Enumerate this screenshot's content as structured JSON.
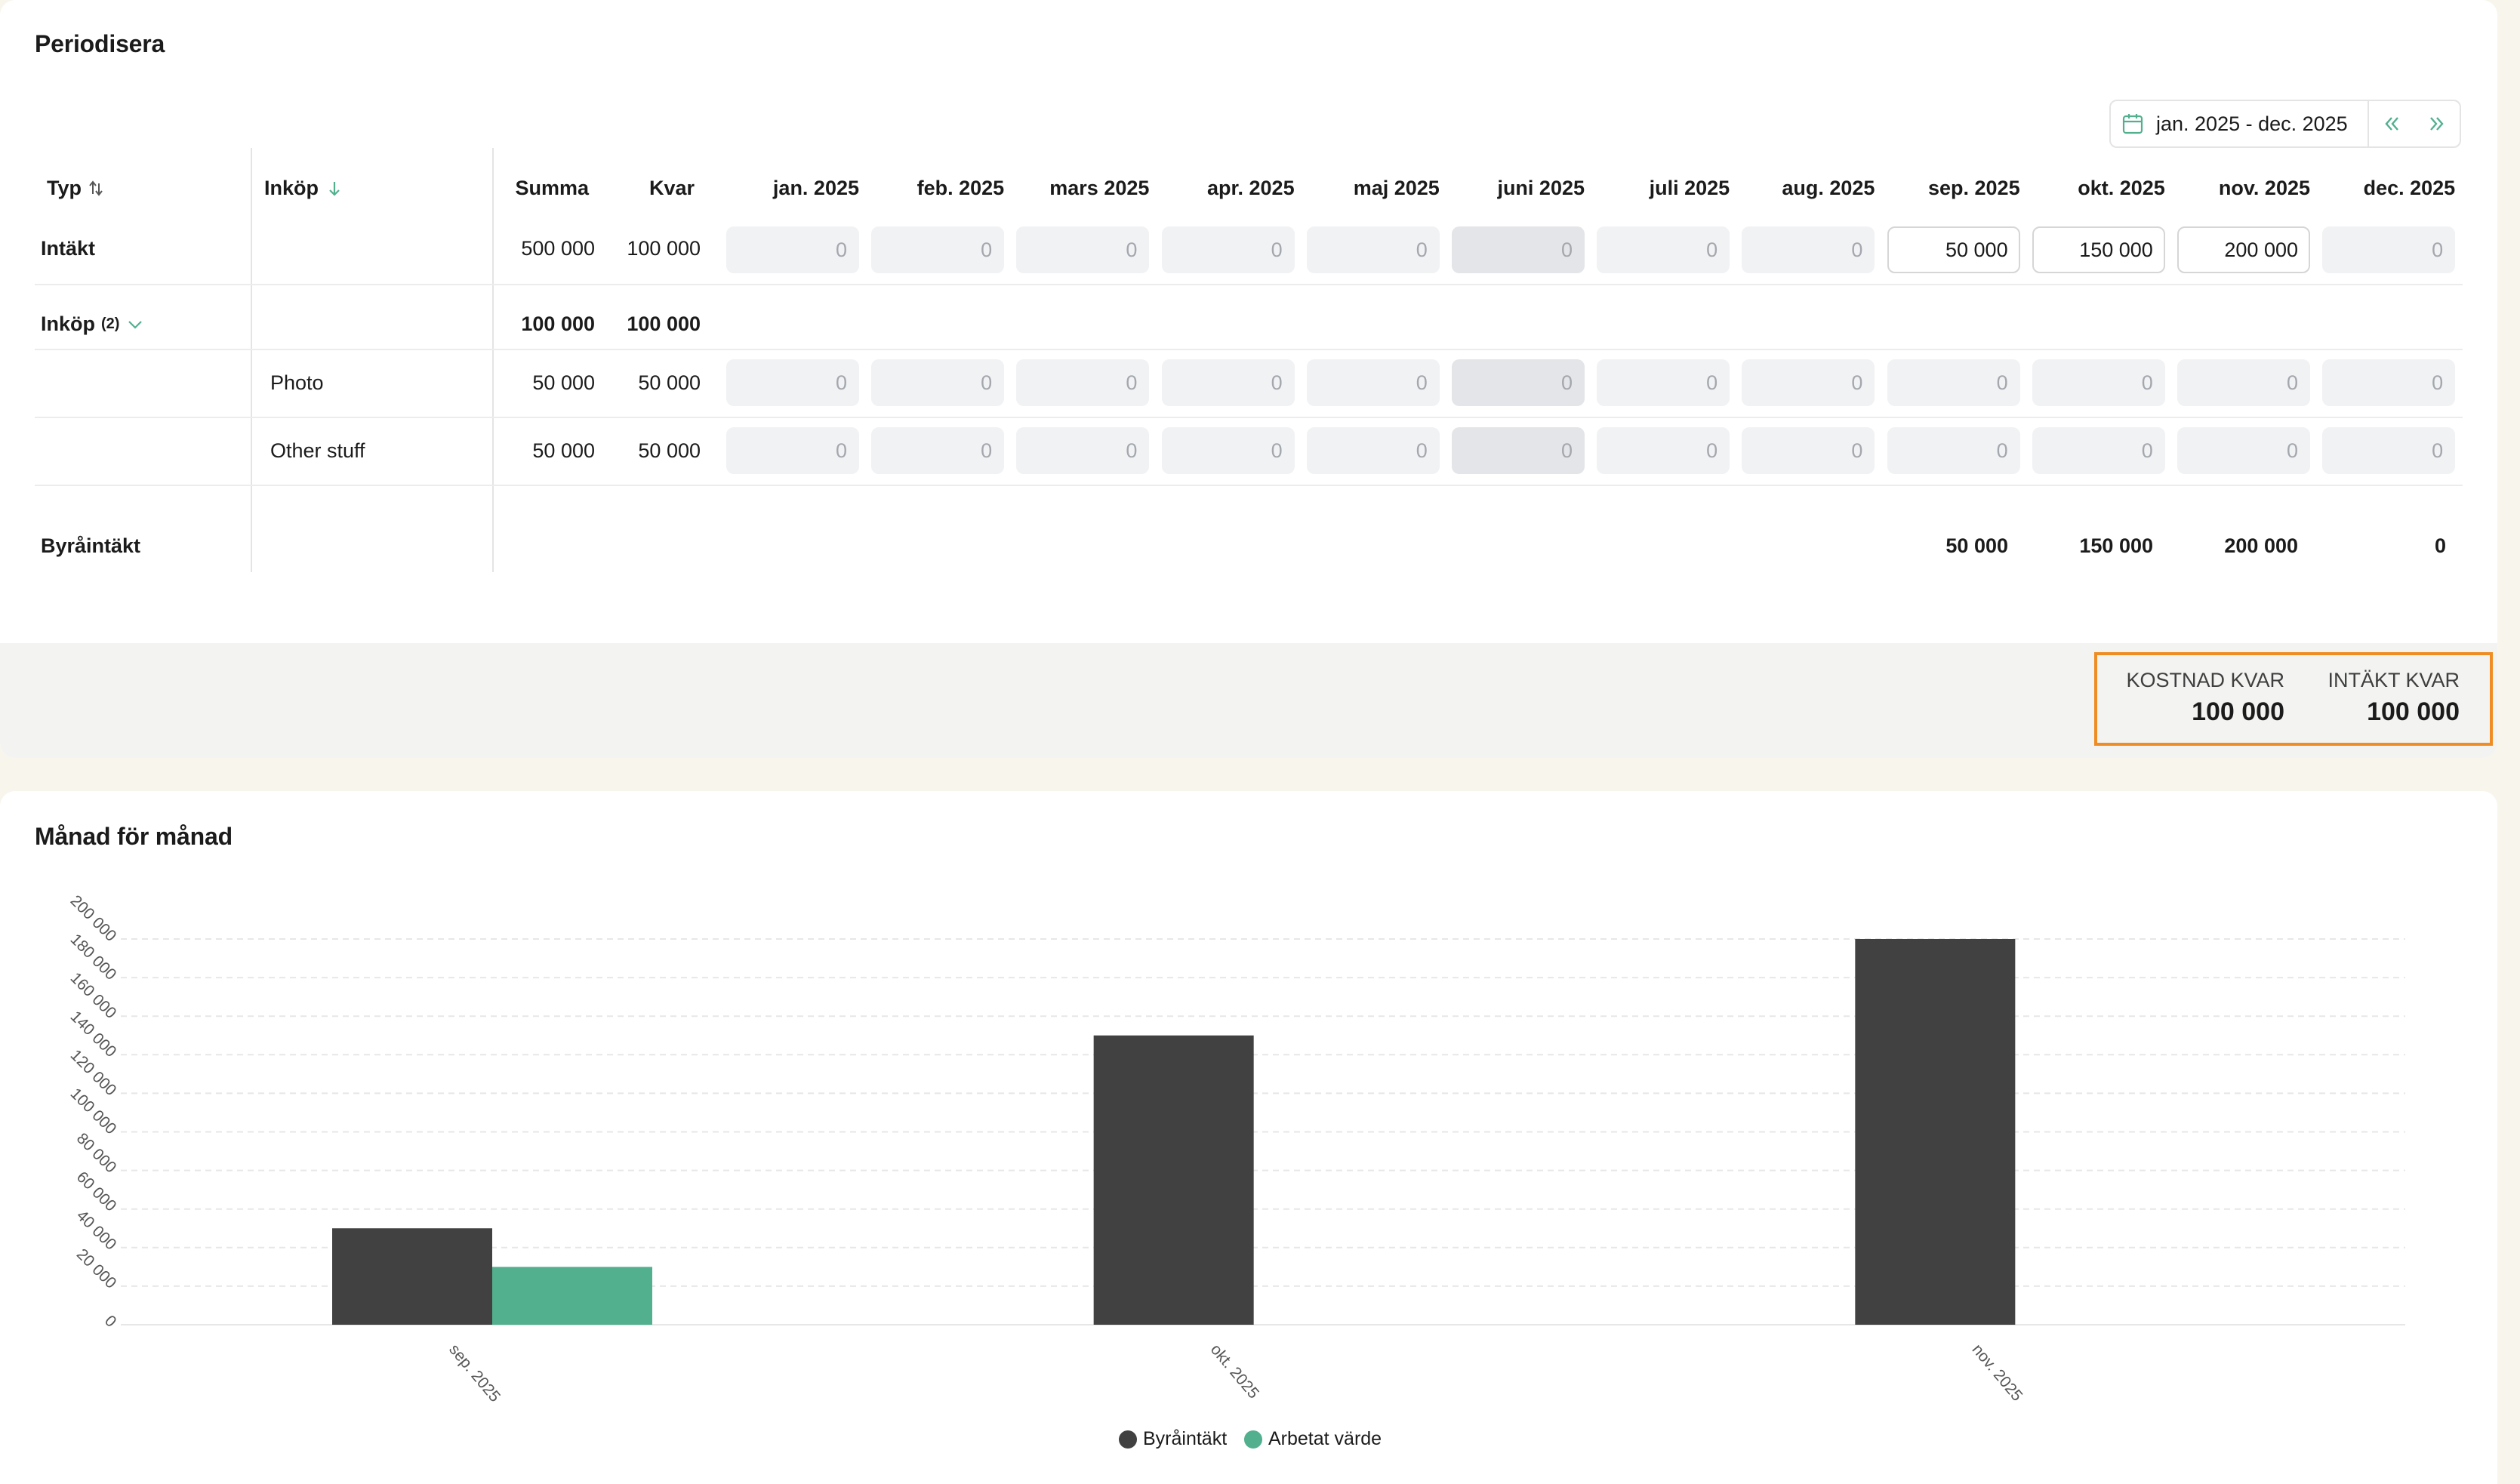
{
  "periodisera": {
    "title": "Periodisera",
    "date_range": "jan. 2025 - dec. 2025",
    "columns": {
      "typ": "Typ",
      "inkop": "Inköp",
      "summa": "Summa",
      "kvar": "Kvar",
      "months": [
        "jan. 2025",
        "feb. 2025",
        "mars 2025",
        "apr. 2025",
        "maj 2025",
        "juni 2025",
        "juli 2025",
        "aug. 2025",
        "sep. 2025",
        "okt. 2025",
        "nov. 2025",
        "dec. 2025"
      ]
    },
    "rows": {
      "intakt": {
        "label": "Intäkt",
        "summa": "500 000",
        "kvar": "100 000",
        "cells": [
          "0",
          "0",
          "0",
          "0",
          "0",
          "0",
          "0",
          "0",
          "50 000",
          "150 000",
          "200 000",
          "0"
        ]
      },
      "inkop_group": {
        "label": "Inköp",
        "count": "(2)",
        "summa": "100 000",
        "kvar": "100 000"
      },
      "photo": {
        "label": "Photo",
        "summa": "50 000",
        "kvar": "50 000",
        "cells": [
          "0",
          "0",
          "0",
          "0",
          "0",
          "0",
          "0",
          "0",
          "0",
          "0",
          "0",
          "0"
        ]
      },
      "other_stuff": {
        "label": "Other stuff",
        "summa": "50 000",
        "kvar": "50 000",
        "cells": [
          "0",
          "0",
          "0",
          "0",
          "0",
          "0",
          "0",
          "0",
          "0",
          "0",
          "0",
          "0"
        ]
      },
      "byraintakt": {
        "label": "Byråintäkt",
        "sep": "50 000",
        "okt": "150 000",
        "nov": "200 000",
        "dec": "0"
      }
    },
    "summary": {
      "kostnad_label": "KOSTNAD KVAR",
      "kostnad_value": "100 000",
      "intakt_label": "INTÄKT KVAR",
      "intakt_value": "100 000"
    }
  },
  "chart_section": {
    "title": "Månad för månad"
  },
  "chart_data": {
    "type": "bar",
    "title": "Månad för månad",
    "categories": [
      "sep. 2025",
      "okt. 2025",
      "nov. 2025"
    ],
    "series": [
      {
        "name": "Byråintäkt",
        "values": [
          50000,
          150000,
          200000
        ],
        "color": "#414141"
      },
      {
        "name": "Arbetat värde",
        "values": [
          30000,
          0,
          0
        ],
        "color": "#52b08e"
      }
    ],
    "yticks": [
      "0",
      "20 000",
      "40 000",
      "60 000",
      "80 000",
      "100 000",
      "120 000",
      "140 000",
      "160 000",
      "180 000",
      "200 000"
    ],
    "ylim": [
      0,
      200000
    ],
    "grid": true,
    "legend": "bottom-center",
    "xlabel": "",
    "ylabel": ""
  },
  "colors": {
    "accent": "#52b08e",
    "highlight_border": "#ef8d24",
    "bar_dark": "#414141"
  }
}
